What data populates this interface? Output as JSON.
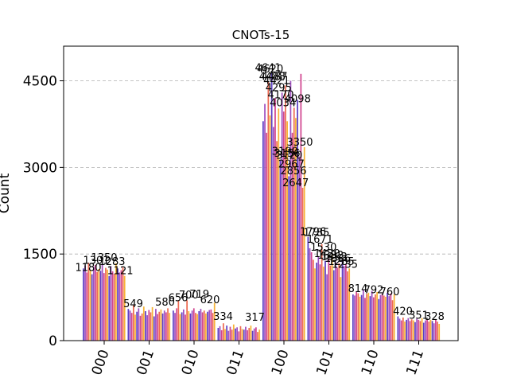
{
  "chart_data": {
    "type": "bar",
    "title": "CNOTs-15",
    "xlabel": "",
    "ylabel": "Count",
    "ylim": [
      0,
      5100
    ],
    "yticks": [
      0,
      1500,
      3000,
      4500
    ],
    "ytick_labels": [
      "0",
      "1500",
      "3000",
      "4500"
    ],
    "grid": "y-dashed",
    "categories": [
      "000",
      "001",
      "010",
      "011",
      "100",
      "101",
      "110",
      "111"
    ],
    "bars_per_category": 25,
    "palette": [
      "#5c3ec4",
      "#9f4fc0",
      "#d1458f",
      "#ee6a53",
      "#f7b236"
    ],
    "series_values": [
      [
        1250,
        1300,
        1180,
        1350,
        1220,
        1150,
        1280,
        1310,
        1190,
        1240,
        1210,
        1330,
        1170,
        1260,
        1230,
        1120,
        1290,
        1200,
        1160,
        1340,
        1250,
        1180,
        1220,
        1270,
        1121
      ],
      [
        549,
        520,
        480,
        610,
        450,
        500,
        560,
        430,
        470,
        590,
        510,
        440,
        530,
        490,
        580,
        420,
        550,
        460,
        500,
        540,
        470,
        520,
        490,
        560,
        480
      ],
      [
        520,
        480,
        560,
        700,
        459,
        490,
        540,
        450,
        700,
        510,
        470,
        520,
        560,
        480,
        460,
        510,
        550,
        490,
        520,
        470,
        500,
        530,
        540,
        480,
        656
      ],
      [
        220,
        250,
        180,
        300,
        200,
        260,
        170,
        240,
        190,
        280,
        210,
        230,
        160,
        250,
        200,
        190,
        240,
        180,
        220,
        260,
        170,
        210,
        230,
        150,
        190
      ],
      [
        3800,
        4100,
        3600,
        4488,
        3900,
        4641,
        3700,
        4200,
        3456,
        4020,
        3120,
        4295,
        3967,
        4420,
        3800,
        2846,
        4500,
        3600,
        4034,
        3856,
        4170,
        3190,
        4620,
        2647,
        3350
      ],
      [
        1796,
        1600,
        1530,
        1400,
        1250,
        1350,
        1450,
        1320,
        1670,
        1280,
        1380,
        1150,
        1420,
        1300,
        1480,
        1220,
        1360,
        1260,
        1340,
        1100,
        1410,
        1290,
        1330,
        1200,
        1250
      ],
      [
        800,
        780,
        850,
        820,
        760,
        790,
        880,
        740,
        810,
        830,
        770,
        860,
        750,
        800,
        840,
        720,
        790,
        810,
        780,
        760,
        830,
        770,
        820,
        700,
        800
      ],
      [
        420,
        380,
        350,
        400,
        330,
        360,
        390,
        340,
        370,
        351,
        320,
        380,
        360,
        340,
        390,
        310,
        350,
        370,
        330,
        360,
        340,
        300,
        370,
        328,
        290
      ]
    ],
    "data_labels": [
      "1180",
      "1301",
      "1350",
      "1283",
      "1121",
      "549",
      "580",
      "656",
      "700",
      "719",
      "620",
      "334",
      "317",
      "4641",
      "4620",
      "4488",
      "4487",
      "4421",
      "4295",
      "4170",
      "4034",
      "3190",
      "3156",
      "3120",
      "2967",
      "2856",
      "2647",
      "4098",
      "3350",
      "1796",
      "1785",
      "1671",
      "1530",
      "1420",
      "1392",
      "1363",
      "1336",
      "1285",
      "1235",
      "814",
      "792",
      "760",
      "420",
      "351",
      "328"
    ]
  }
}
